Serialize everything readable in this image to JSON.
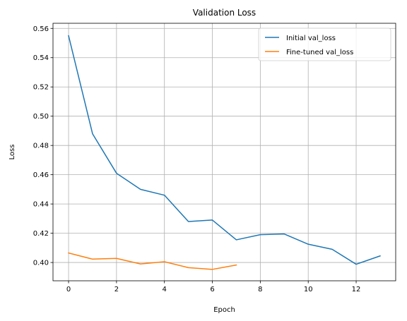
{
  "chart_data": {
    "type": "line",
    "title": "Validation Loss",
    "xlabel": "Epoch",
    "ylabel": "Loss",
    "xlim": [
      -0.65,
      13.65
    ],
    "ylim": [
      0.3875,
      0.5635
    ],
    "xticks": [
      0,
      2,
      4,
      6,
      8,
      10,
      12
    ],
    "yticks": [
      0.4,
      0.42,
      0.44,
      0.46,
      0.48,
      0.5,
      0.52,
      0.54,
      0.56
    ],
    "ytick_labels": [
      "0.40",
      "0.42",
      "0.44",
      "0.46",
      "0.48",
      "0.50",
      "0.52",
      "0.54",
      "0.56"
    ],
    "grid": true,
    "legend_position": "top-right",
    "series": [
      {
        "name": "Initial val_loss",
        "color": "#1f77b4",
        "x": [
          0,
          1,
          2,
          3,
          4,
          5,
          6,
          7,
          8,
          9,
          10,
          11,
          12,
          13
        ],
        "values": [
          0.555,
          0.488,
          0.461,
          0.45,
          0.446,
          0.428,
          0.429,
          0.4155,
          0.419,
          0.4195,
          0.4125,
          0.409,
          0.3988,
          0.4045
        ]
      },
      {
        "name": "Fine-tuned val_loss",
        "color": "#ff7f0e",
        "x": [
          0,
          1,
          2,
          3,
          4,
          5,
          6,
          7
        ],
        "values": [
          0.4065,
          0.4023,
          0.4028,
          0.399,
          0.4005,
          0.3965,
          0.3953,
          0.3983
        ]
      }
    ]
  }
}
